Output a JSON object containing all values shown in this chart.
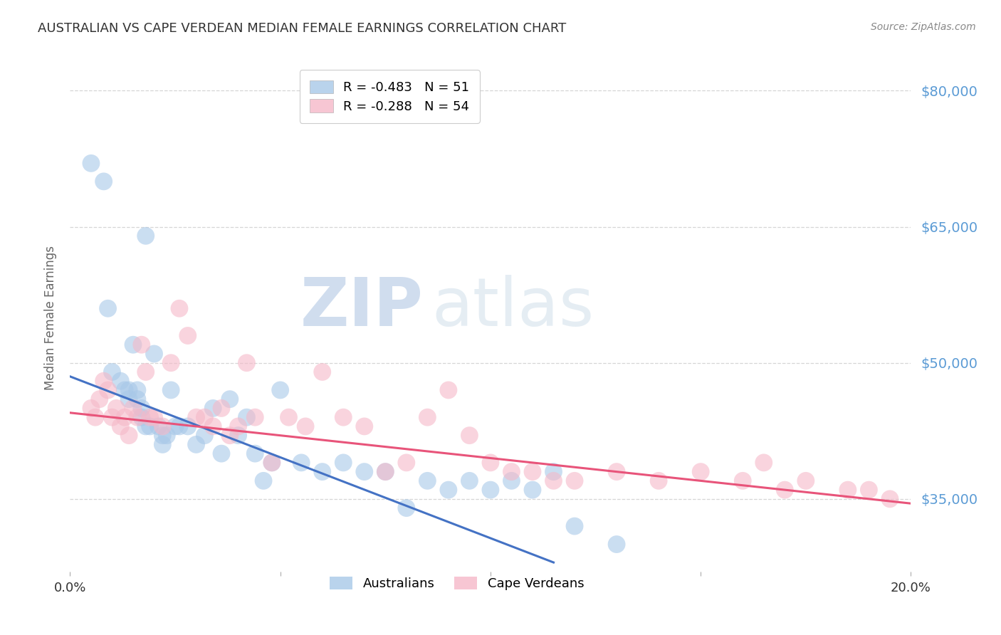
{
  "title": "AUSTRALIAN VS CAPE VERDEAN MEDIAN FEMALE EARNINGS CORRELATION CHART",
  "source": "Source: ZipAtlas.com",
  "ylabel": "Median Female Earnings",
  "xlim": [
    0.0,
    0.2
  ],
  "ylim": [
    27000,
    83000
  ],
  "yticks": [
    35000,
    50000,
    65000,
    80000
  ],
  "ytick_labels": [
    "$35,000",
    "$50,000",
    "$65,000",
    "$80,000"
  ],
  "xticks": [
    0.0,
    0.05,
    0.1,
    0.15,
    0.2
  ],
  "grid_color": "#cccccc",
  "bg_color": "#ffffff",
  "australian_color": "#a8c8e8",
  "cape_verdean_color": "#f5b8c8",
  "trendline_australian_color": "#4472c4",
  "trendline_cape_verdean_color": "#e8547a",
  "australian_R": "-0.483",
  "australian_N": "51",
  "cape_verdean_R": "-0.288",
  "cape_verdean_N": "54",
  "legend_label_1": "Australians",
  "legend_label_2": "Cape Verdeans",
  "watermark_zip": "ZIP",
  "watermark_atlas": "atlas",
  "aus_trendline_x": [
    0.0,
    0.115
  ],
  "aus_trendline_y": [
    48500,
    28000
  ],
  "cv_trendline_x": [
    0.0,
    0.2
  ],
  "cv_trendline_y": [
    44500,
    34500
  ],
  "australian_x": [
    0.005,
    0.008,
    0.009,
    0.01,
    0.012,
    0.013,
    0.014,
    0.014,
    0.015,
    0.016,
    0.016,
    0.017,
    0.017,
    0.018,
    0.018,
    0.019,
    0.02,
    0.021,
    0.022,
    0.022,
    0.023,
    0.024,
    0.025,
    0.026,
    0.028,
    0.03,
    0.032,
    0.034,
    0.036,
    0.038,
    0.04,
    0.042,
    0.044,
    0.046,
    0.048,
    0.05,
    0.055,
    0.06,
    0.065,
    0.07,
    0.075,
    0.08,
    0.085,
    0.09,
    0.095,
    0.1,
    0.105,
    0.11,
    0.115,
    0.12,
    0.13
  ],
  "australian_y": [
    72000,
    70000,
    56000,
    49000,
    48000,
    47000,
    47000,
    46000,
    52000,
    47000,
    46000,
    45000,
    44000,
    64000,
    43000,
    43000,
    51000,
    43000,
    42000,
    41000,
    42000,
    47000,
    43000,
    43000,
    43000,
    41000,
    42000,
    45000,
    40000,
    46000,
    42000,
    44000,
    40000,
    37000,
    39000,
    47000,
    39000,
    38000,
    39000,
    38000,
    38000,
    34000,
    37000,
    36000,
    37000,
    36000,
    37000,
    36000,
    38000,
    32000,
    30000
  ],
  "cape_verdean_x": [
    0.005,
    0.006,
    0.007,
    0.008,
    0.009,
    0.01,
    0.011,
    0.012,
    0.013,
    0.014,
    0.015,
    0.016,
    0.017,
    0.018,
    0.019,
    0.02,
    0.022,
    0.024,
    0.026,
    0.028,
    0.03,
    0.032,
    0.034,
    0.036,
    0.038,
    0.04,
    0.042,
    0.044,
    0.048,
    0.052,
    0.056,
    0.06,
    0.065,
    0.07,
    0.075,
    0.08,
    0.085,
    0.09,
    0.095,
    0.1,
    0.105,
    0.11,
    0.115,
    0.12,
    0.13,
    0.14,
    0.15,
    0.16,
    0.165,
    0.17,
    0.175,
    0.185,
    0.19,
    0.195
  ],
  "cape_verdean_y": [
    45000,
    44000,
    46000,
    48000,
    47000,
    44000,
    45000,
    43000,
    44000,
    42000,
    45000,
    44000,
    52000,
    49000,
    44000,
    44000,
    43000,
    50000,
    56000,
    53000,
    44000,
    44000,
    43000,
    45000,
    42000,
    43000,
    50000,
    44000,
    39000,
    44000,
    43000,
    49000,
    44000,
    43000,
    38000,
    39000,
    44000,
    47000,
    42000,
    39000,
    38000,
    38000,
    37000,
    37000,
    38000,
    37000,
    38000,
    37000,
    39000,
    36000,
    37000,
    36000,
    36000,
    35000
  ]
}
